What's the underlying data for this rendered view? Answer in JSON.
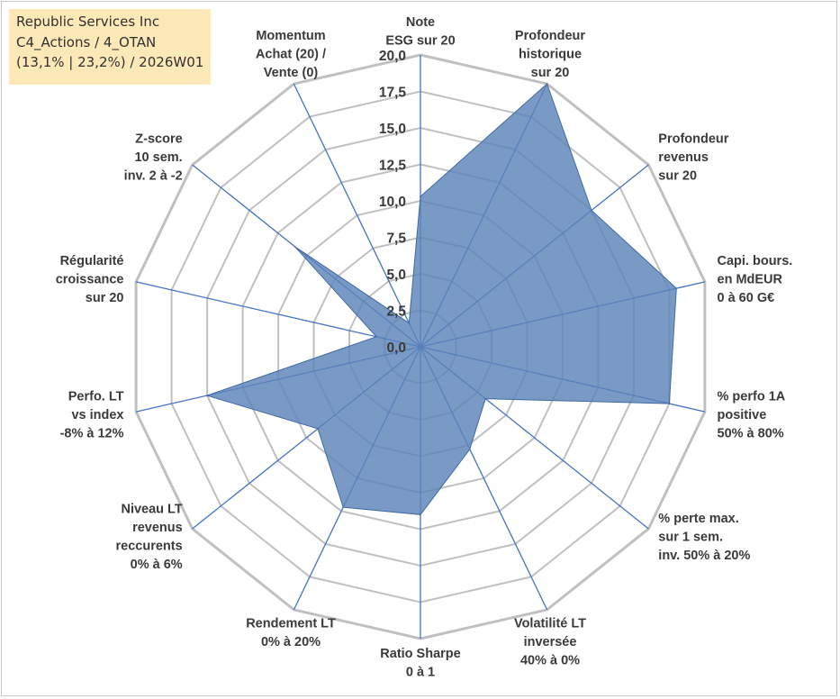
{
  "header": {
    "line1": "Republic Services Inc",
    "line2": "C4_Actions / 4_OTAN",
    "line3": "(13,1% | 23,2%) / 2026W01"
  },
  "colors": {
    "fill": "#5b84b8",
    "stroke": "#3f6aa3",
    "grid": "#c0c0c0",
    "spoke": "#4472c4",
    "header_bg": "#fde9b8"
  },
  "chart_data": {
    "type": "radar",
    "range": [
      0,
      20
    ],
    "grid": true,
    "ticks": [
      "0,0",
      "2,5",
      "5,0",
      "7,5",
      "10,0",
      "12,5",
      "15,0",
      "17,5",
      "20,0"
    ],
    "axes": [
      {
        "label": [
          "Note",
          "ESG sur 20"
        ],
        "value": 10.3
      },
      {
        "label": [
          "Profondeur",
          "historique",
          "sur 20"
        ],
        "value": 20.0
      },
      {
        "label": [
          "Profondeur",
          "revenus",
          "sur 20"
        ],
        "value": 15.0
      },
      {
        "label": [
          "Capi. bours.",
          "en MdEUR",
          "0 à 60 G€"
        ],
        "value": 18.0
      },
      {
        "label": [
          "% perfo 1A",
          "positive",
          "50% à 80%"
        ],
        "value": 17.5
      },
      {
        "label": [
          "% perte max.",
          "sur 1 sem.",
          "inv. 50% à 20%"
        ],
        "value": 5.7
      },
      {
        "label": [
          "Volatilité LT",
          "inversée",
          "40% à 0%"
        ],
        "value": 7.8
      },
      {
        "label": [
          "Ratio Sharpe",
          "0 à 1"
        ],
        "value": 11.5
      },
      {
        "label": [
          "Rendement LT",
          "0% à 20%"
        ],
        "value": 12.2
      },
      {
        "label": [
          "Niveau LT",
          "revenus",
          "reccurents",
          "0% à 6%"
        ],
        "value": 9.0
      },
      {
        "label": [
          "Perfo. LT",
          "vs index",
          "-8% à 12%"
        ],
        "value": 15.0
      },
      {
        "label": [
          "Régularité",
          "croissance",
          "sur 20"
        ],
        "value": 3.1
      },
      {
        "label": [
          "Z-score",
          "10 sem.",
          "inv. 2 à -2"
        ],
        "value": 11.0
      },
      {
        "label": [
          "Momentum",
          "Achat (20) /",
          "Vente (0)"
        ],
        "value": 1.8
      }
    ]
  }
}
